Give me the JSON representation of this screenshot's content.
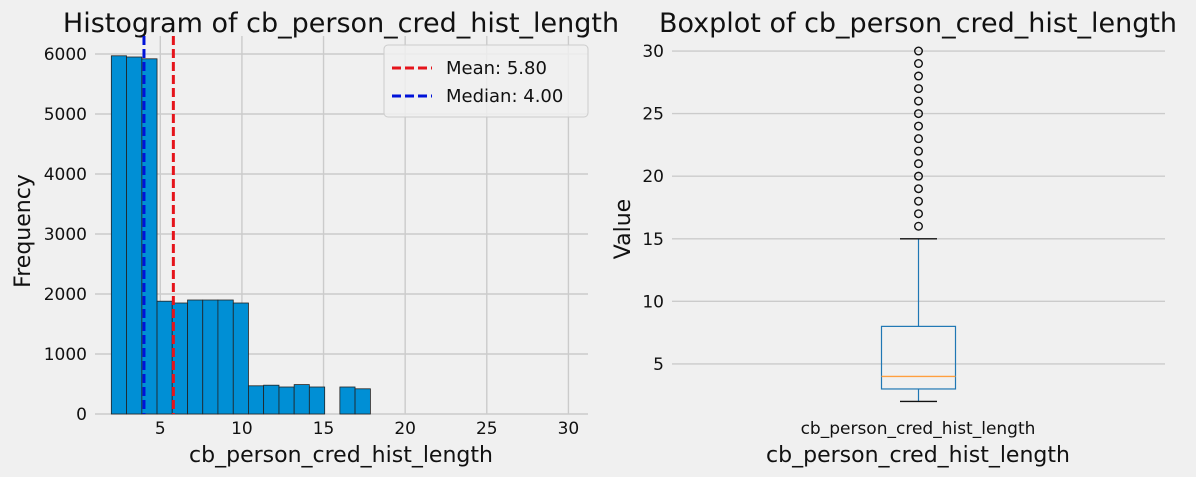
{
  "chart_data": [
    {
      "type": "bar",
      "title": "Histogram of cb_person_cred_hist_length",
      "xlabel": "cb_person_cred_hist_length",
      "ylabel": "Frequency",
      "xlim": [
        1.0,
        31.2
      ],
      "ylim": [
        0,
        6300
      ],
      "xticks": [
        5,
        10,
        15,
        20,
        25,
        30
      ],
      "yticks": [
        0,
        1000,
        2000,
        3000,
        4000,
        5000,
        6000
      ],
      "bar_color": "#008fd5",
      "bins": [
        {
          "start": 2.0,
          "end": 2.93,
          "value": 5970
        },
        {
          "start": 2.93,
          "end": 3.87,
          "value": 5950
        },
        {
          "start": 3.87,
          "end": 4.8,
          "value": 5920
        },
        {
          "start": 4.8,
          "end": 5.73,
          "value": 1880
        },
        {
          "start": 5.73,
          "end": 6.67,
          "value": 1850
        },
        {
          "start": 6.67,
          "end": 7.6,
          "value": 1900
        },
        {
          "start": 7.6,
          "end": 8.53,
          "value": 1900
        },
        {
          "start": 8.53,
          "end": 9.47,
          "value": 1900
        },
        {
          "start": 9.47,
          "end": 10.4,
          "value": 1850
        },
        {
          "start": 10.4,
          "end": 11.33,
          "value": 470
        },
        {
          "start": 11.33,
          "end": 12.27,
          "value": 480
        },
        {
          "start": 12.27,
          "end": 13.2,
          "value": 450
        },
        {
          "start": 13.2,
          "end": 14.13,
          "value": 490
        },
        {
          "start": 14.13,
          "end": 15.07,
          "value": 450
        },
        {
          "start": 15.07,
          "end": 16.0,
          "value": 0
        },
        {
          "start": 16.0,
          "end": 16.93,
          "value": 450
        },
        {
          "start": 16.93,
          "end": 17.87,
          "value": 420
        }
      ],
      "lines": [
        {
          "name": "Mean: 5.80",
          "x": 5.8,
          "color": "#e5141b",
          "style": "dashed"
        },
        {
          "name": "Median: 4.00",
          "x": 4.0,
          "color": "#0012d9",
          "style": "dashed"
        }
      ],
      "legend_position": "top-right",
      "grid": true
    },
    {
      "type": "box",
      "title": "Boxplot of cb_person_cred_hist_length",
      "xlabel": "cb_person_cred_hist_length",
      "ylabel": "Value",
      "category": "cb_person_cred_hist_length",
      "ylim": [
        1.0,
        31.2
      ],
      "yticks": [
        5,
        10,
        15,
        20,
        25,
        30
      ],
      "whisker_low": 2,
      "q1": 3,
      "median": 4,
      "q3": 8,
      "whisker_high": 15,
      "outliers": [
        16,
        17,
        18,
        19,
        20,
        21,
        22,
        23,
        24,
        25,
        26,
        27,
        28,
        29,
        30
      ],
      "box_color": "#1f77b4",
      "median_color": "#ff9f3f",
      "grid": true
    }
  ]
}
